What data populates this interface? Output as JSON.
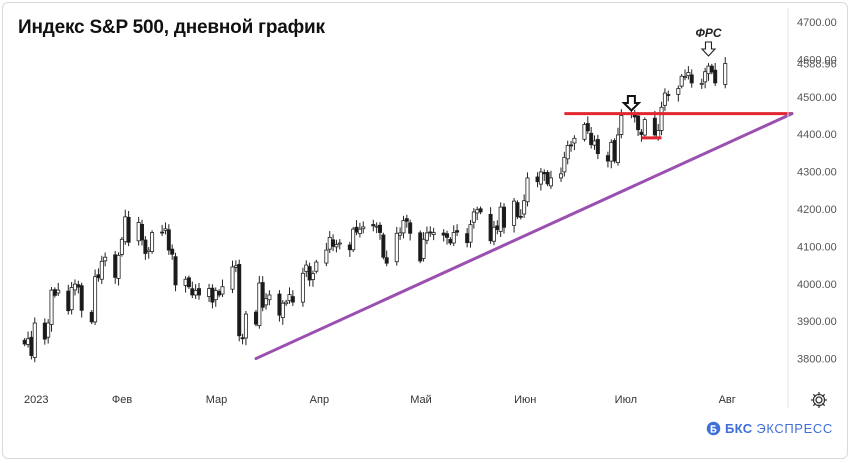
{
  "header": {
    "title": "Индекс S&P 500, дневной график"
  },
  "brand": {
    "name": "БКС",
    "sub": "ЭКСПРЕСС"
  },
  "icons": {
    "settings": "gear-icon",
    "logo": "bks-logo-icon"
  },
  "colors": {
    "up": "#1a1a1a",
    "down": "#1a1a1a",
    "resistance_line": "#e0262f",
    "trend_line": "#9b4fb0",
    "brand": "#3f6fd8"
  },
  "chart_data": {
    "type": "candlestick",
    "title": "Индекс S&P 500, дневной график",
    "xlabel": "",
    "ylabel": "",
    "ylim": [
      3740,
      4700
    ],
    "grid": false,
    "y_ticks": [
      "4700.00",
      "4600.00",
      "4500.00",
      "4400.00",
      "4300.00",
      "4200.00",
      "4100.00",
      "4000.00",
      "3900.00",
      "3800.00"
    ],
    "x_ticks": [
      "2023",
      "Фев",
      "Мар",
      "Апр",
      "Май",
      "Июн",
      "Июл",
      "Авг"
    ],
    "last_price_label": "4588.96",
    "annotations": [
      {
        "text": "ФРС",
        "date": "2023-07-26"
      },
      {
        "text": "",
        "date": "2023-07-03",
        "type": "arrow-down"
      }
    ],
    "lines": [
      {
        "name": "",
        "type": "horizontal",
        "value": 4455,
        "from": "2023-06-13",
        "to": "2023-08-08",
        "color": "#e0262f"
      },
      {
        "name": "",
        "type": "horizontal",
        "value": 4390,
        "from": "2023-07-06",
        "to": "2023-07-12",
        "color": "#e0262f"
      },
      {
        "name": "",
        "type": "trend",
        "from_date": "2023-03-13",
        "from_value": 3800,
        "to_date": "2023-08-08",
        "to_value": 4455,
        "color": "#9b4fb0"
      }
    ],
    "closes": [
      3839,
      3853,
      3808,
      3895,
      3852,
      3895,
      3983,
      3969,
      3983,
      3928,
      3990,
      3999,
      3991,
      3929,
      3898,
      4019,
      4016,
      4060,
      4071,
      4017,
      4076,
      4119,
      4179,
      4111,
      4164,
      4117,
      4081,
      4090,
      4137,
      4136,
      4147,
      4090,
      4079,
      3997,
      4012,
      3992,
      3970,
      3982,
      3970,
      3987,
      3951,
      3982,
      3970,
      3992,
      4045,
      4048,
      3861,
      3855,
      3919,
      3892,
      4002,
      3937,
      3960,
      3970,
      3916,
      3948,
      3951,
      3971,
      3951,
      4028,
      4050,
      4010,
      4027,
      4058,
      4090,
      4124,
      4100,
      4105,
      4109,
      4091,
      4146,
      4138,
      4146,
      4152,
      4155,
      4154,
      4137,
      4071,
      4055,
      4135,
      4136,
      4169,
      4167,
      4135,
      4061,
      4119,
      4136,
      4138,
      4137,
      4130,
      4124,
      4109,
      4137,
      4138,
      4110,
      4158,
      4192,
      4198,
      4192,
      4115,
      4151,
      4145,
      4205,
      4151,
      4221,
      4179,
      4180,
      4222,
      4283,
      4273,
      4299,
      4294,
      4267,
      4283,
      4294,
      4338,
      4370,
      4370,
      4389,
      4426,
      4409,
      4372,
      4382,
      4348,
      4328,
      4378,
      4328,
      4398,
      4450,
      4455,
      4446,
      4412,
      4399,
      4439,
      4398,
      4410,
      4472,
      4510,
      4505,
      4522,
      4555,
      4554,
      4565,
      4537,
      4536,
      4567,
      4582,
      4566,
      4537,
      4589
    ],
    "end_date": "2023-07-31"
  }
}
